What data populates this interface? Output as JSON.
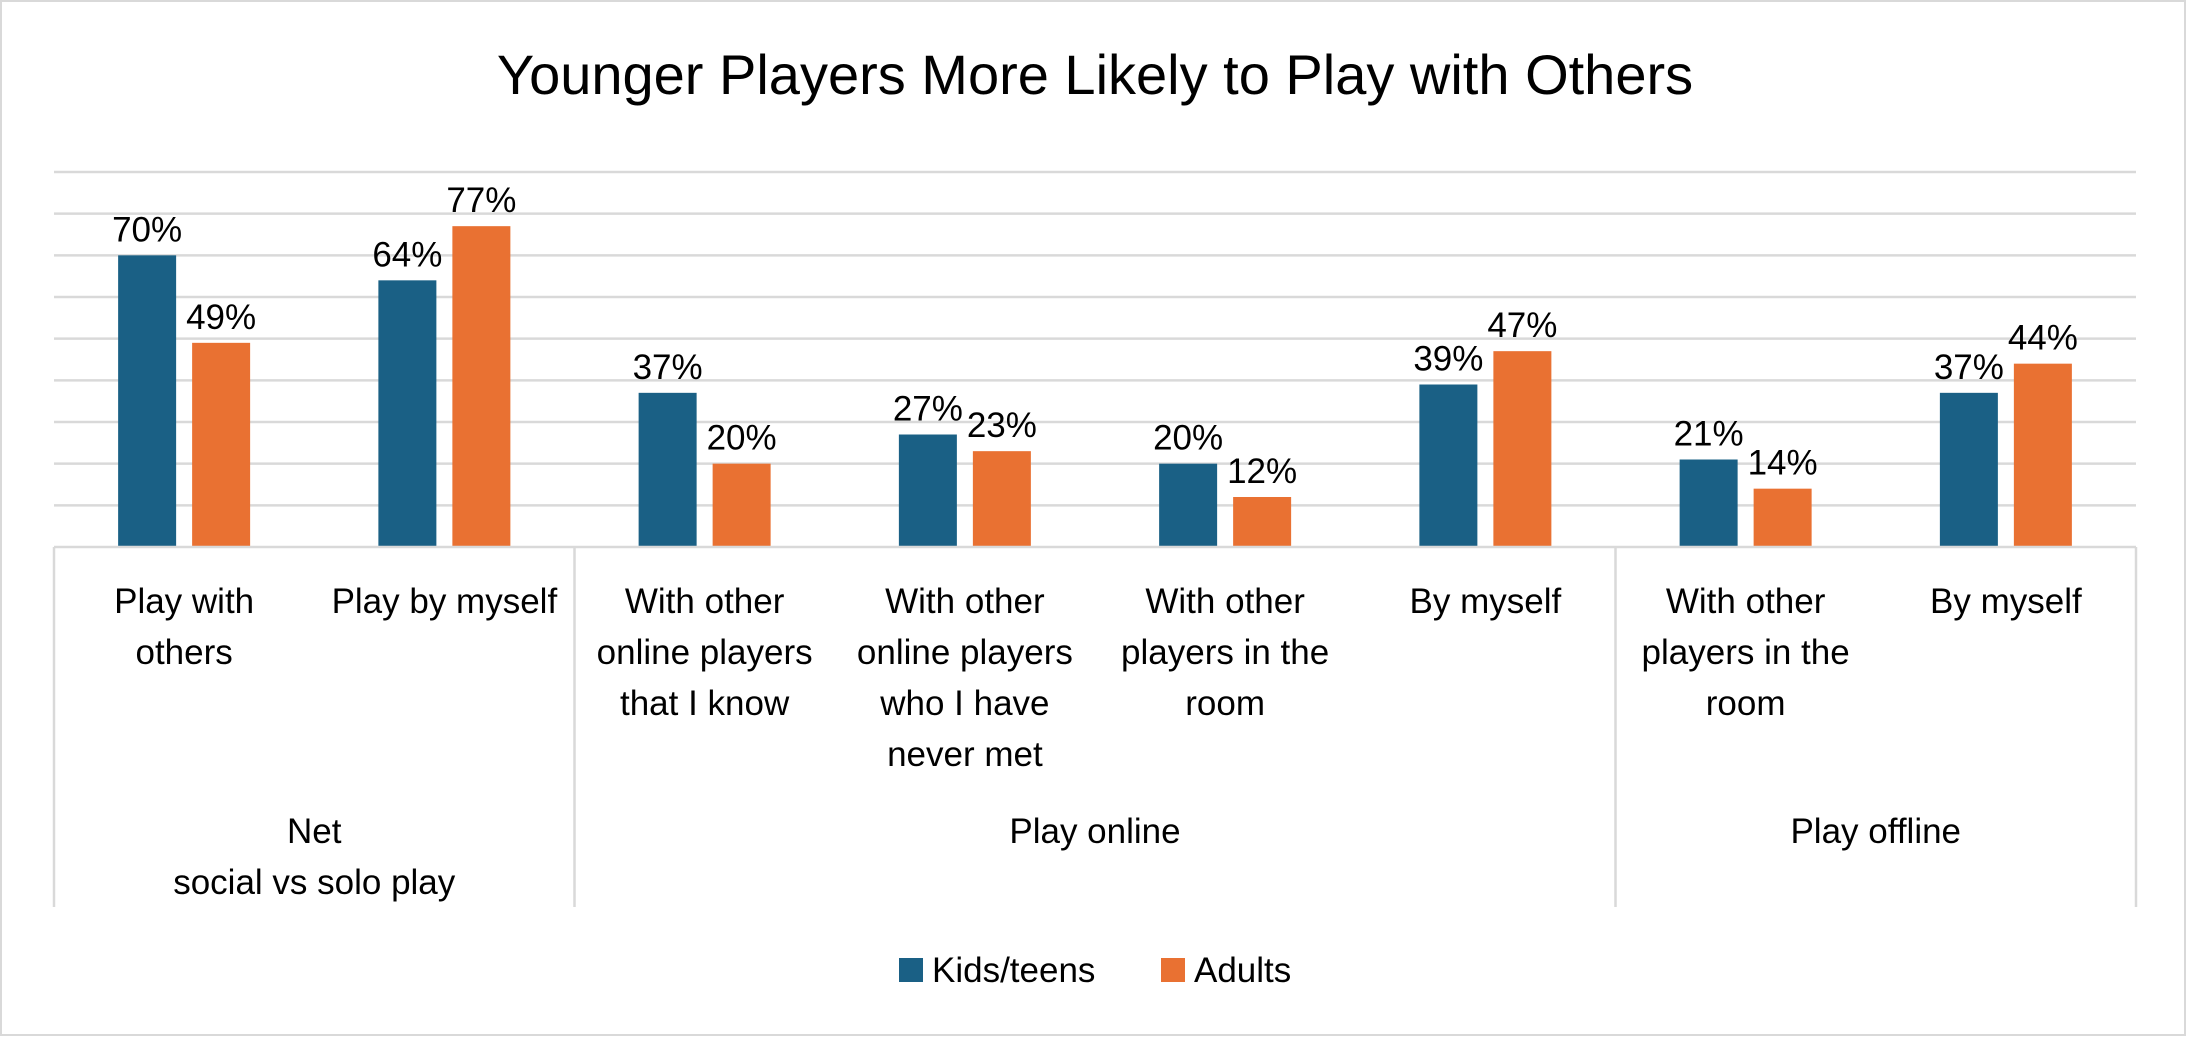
{
  "chart_data": {
    "type": "bar",
    "title": "Younger Players More Likely to Play with Others",
    "ylim": [
      0,
      90
    ],
    "grid": true,
    "legend_position": "bottom",
    "categories": [
      {
        "label": [
          "Play with",
          "others"
        ],
        "group": 0
      },
      {
        "label": [
          "Play by myself"
        ],
        "group": 0
      },
      {
        "label": [
          "With other",
          "online players",
          "that I know"
        ],
        "group": 1
      },
      {
        "label": [
          "With other",
          "online players",
          "who I have",
          "never met"
        ],
        "group": 1
      },
      {
        "label": [
          "With other",
          "players in the",
          "room"
        ],
        "group": 1
      },
      {
        "label": [
          "By myself"
        ],
        "group": 1
      },
      {
        "label": [
          "With other",
          "players in the",
          "room"
        ],
        "group": 2
      },
      {
        "label": [
          "By myself"
        ],
        "group": 2
      }
    ],
    "groups": [
      {
        "label": [
          "Net",
          "social vs solo play"
        ],
        "span": [
          0,
          1
        ]
      },
      {
        "label": [
          "Play online"
        ],
        "span": [
          2,
          5
        ]
      },
      {
        "label": [
          "Play offline"
        ],
        "span": [
          6,
          7
        ]
      }
    ],
    "series": [
      {
        "name": "Kids/teens",
        "color": "#1a6085",
        "values": [
          70,
          64,
          37,
          27,
          20,
          39,
          21,
          37
        ],
        "labels": [
          "70%",
          "64%",
          "37%",
          "27%",
          "20%",
          "39%",
          "21%",
          "37%"
        ]
      },
      {
        "name": "Adults",
        "color": "#e97132",
        "values": [
          49,
          77,
          20,
          23,
          12,
          47,
          14,
          44
        ],
        "labels": [
          "49%",
          "77%",
          "20%",
          "23%",
          "12%",
          "47%",
          "14%",
          "44%"
        ]
      }
    ]
  }
}
